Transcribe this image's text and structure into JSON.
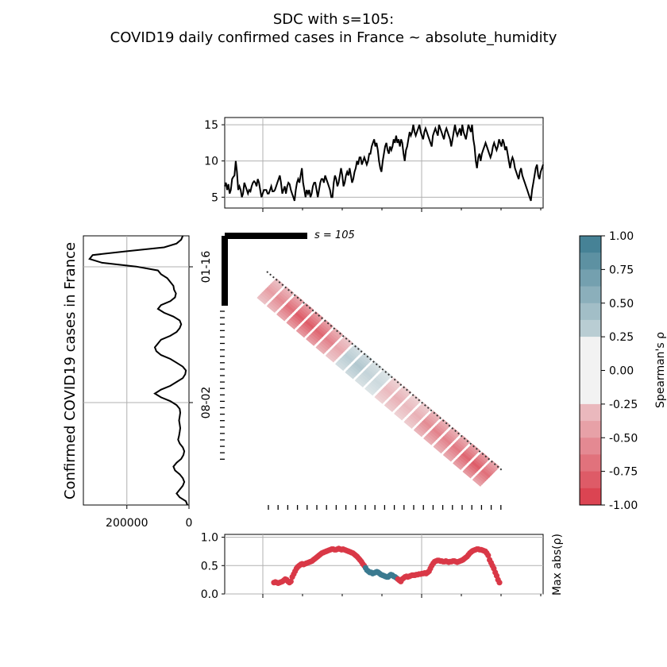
{
  "title_line1": "SDC with s=105:",
  "title_line2": "COVID19 daily confirmed cases in France ~ absolute_humidity",
  "s_label": "s = 105",
  "colors": {
    "positive": "#3b7a90",
    "negative": "#d93847",
    "line": "#000000",
    "grid": "#b0b0b0"
  },
  "chart_data": [
    {
      "type": "line",
      "panel": "top",
      "series": [
        {
          "values": [
            6.5,
            7,
            6,
            6.8,
            5.5,
            6,
            7.5,
            7.8,
            8,
            10,
            8.5,
            6,
            6.5,
            6,
            5,
            5.5,
            7,
            6.5,
            6,
            5.5,
            6,
            5.8,
            6.5,
            7,
            7.2,
            7,
            6.5,
            7.5,
            7,
            6,
            5,
            5.5,
            6,
            6,
            6,
            5.5,
            5.5,
            6,
            6.5,
            5.8,
            5.8,
            6,
            6.5,
            7,
            7.5,
            8,
            7,
            5.5,
            6,
            6.5,
            5.5,
            6.5,
            7,
            6.8,
            6,
            5.5,
            5,
            4.5,
            6,
            7,
            7.5,
            7,
            8,
            9,
            7,
            6,
            5,
            6,
            5.5,
            6,
            5,
            5.5,
            6.5,
            7,
            7,
            6,
            5,
            6,
            7,
            7.5,
            7.5,
            7,
            8,
            7.5,
            7,
            6.5,
            6,
            5,
            5,
            7,
            8,
            7.5,
            6.5,
            7,
            8,
            9,
            8,
            6.5,
            7,
            8,
            8.5,
            8,
            9,
            8,
            7,
            7.5,
            8.5,
            9,
            10,
            9.5,
            10.5,
            10.5,
            9.5,
            10,
            10.5,
            10,
            9.5,
            10,
            11,
            11,
            12,
            12.5,
            13,
            12,
            12.5,
            11.5,
            10,
            9,
            8.5,
            10,
            11,
            12,
            12.5,
            11.5,
            11,
            12,
            11.5,
            12,
            13,
            12.5,
            13.5,
            12.5,
            13,
            12,
            13,
            12.5,
            11,
            10,
            11.5,
            12,
            13,
            14,
            13.5,
            14,
            15,
            14,
            13.5,
            14,
            14.5,
            15,
            14,
            13.5,
            13,
            14,
            14.5,
            14,
            13.5,
            13,
            12.5,
            12,
            13.5,
            14,
            14.5,
            14,
            13.5,
            15,
            14.5,
            14,
            13.5,
            13,
            14,
            14.5,
            14,
            13.5,
            13,
            12,
            13,
            14,
            15,
            14,
            13.5,
            14,
            14.5,
            13.5,
            15,
            14,
            13.5,
            13,
            14,
            15,
            14.5,
            14,
            15,
            13,
            12,
            10,
            9,
            10.5,
            11,
            10,
            11,
            11.5,
            12,
            12.5,
            12,
            11.5,
            11,
            10.5,
            11,
            12,
            12.5,
            12,
            11.5,
            12,
            13,
            12.5,
            12,
            13,
            12.5,
            11.5,
            12,
            11,
            10,
            9,
            10,
            10.5,
            10,
            9,
            8.5,
            8,
            7.5,
            8.5,
            9,
            8,
            7.5,
            7,
            6.5,
            6,
            5.5,
            5,
            4.5,
            6,
            7,
            8,
            9,
            9.5,
            8,
            7.5,
            8.5,
            9,
            9.5
          ]
        }
      ],
      "ylim": [
        3.5,
        16
      ],
      "yticks": [
        "5",
        "10",
        "15"
      ]
    },
    {
      "type": "line",
      "panel": "left",
      "xlim_reversed": [
        0,
        340000
      ],
      "xticks": [
        "200000",
        "0"
      ],
      "ylabel": "Confirmed COVID19 cases in France",
      "yticks": [
        "01-16",
        "08-02"
      ],
      "series": [
        {
          "values": [
            20000,
            25000,
            40000,
            80000,
            200000,
            310000,
            320000,
            280000,
            170000,
            100000,
            90000,
            70000,
            60000,
            50000,
            48000,
            42000,
            45000,
            60000,
            90000,
            100000,
            80000,
            50000,
            30000,
            25000,
            30000,
            40000,
            60000,
            90000,
            100000,
            110000,
            105000,
            90000,
            60000,
            40000,
            20000,
            10000,
            12000,
            20000,
            40000,
            60000,
            90000,
            110000,
            90000,
            60000,
            40000,
            30000,
            28000,
            30000,
            32000,
            30000,
            28000,
            30000,
            32000,
            35000,
            30000,
            20000,
            15000,
            18000,
            25000,
            40000,
            50000,
            45000,
            30000,
            20000,
            15000,
            20000,
            30000,
            40000,
            30000,
            10000,
            5000
          ]
        }
      ]
    },
    {
      "type": "heatmap",
      "panel": "center",
      "value_name": "Spearman's ρ",
      "colorbar_ticks": [
        "1.00",
        "0.75",
        "0.50",
        "0.25",
        "0.00",
        "-0.25",
        "-0.50",
        "-0.75",
        "-1.00"
      ],
      "colorbar_label": "Spearman's ρ",
      "window_size": 105,
      "lags": [
        -8,
        -7,
        -6,
        -5,
        -4,
        -3,
        -2,
        -1,
        0,
        1,
        2
      ],
      "diagonal_rho": [
        -0.3,
        -0.45,
        -0.55,
        -0.7,
        -0.8,
        -0.8,
        -0.75,
        -0.6,
        -0.4,
        0.3,
        0.35,
        0.25,
        0.2,
        -0.3,
        -0.35,
        -0.3,
        -0.35,
        -0.55,
        -0.6,
        -0.6,
        -0.65,
        -0.75,
        -0.8,
        -0.7
      ]
    },
    {
      "type": "scatter",
      "panel": "bottom",
      "ylabel": "Max abs(ρ)",
      "yticks": [
        "0.0",
        "0.5",
        "1.0"
      ],
      "ylim": [
        0,
        1.05
      ],
      "values": [
        0.2,
        0.21,
        0.2,
        0.19,
        0.2,
        0.21,
        0.22,
        0.24,
        0.26,
        0.25,
        0.22,
        0.2,
        0.22,
        0.3,
        0.35,
        0.4,
        0.45,
        0.48,
        0.5,
        0.52,
        0.53,
        0.52,
        0.53,
        0.54,
        0.55,
        0.56,
        0.57,
        0.58,
        0.6,
        0.62,
        0.64,
        0.66,
        0.68,
        0.7,
        0.72,
        0.73,
        0.74,
        0.75,
        0.76,
        0.77,
        0.78,
        0.79,
        0.79,
        0.78,
        0.78,
        0.79,
        0.8,
        0.79,
        0.78,
        0.79,
        0.78,
        0.77,
        0.76,
        0.75,
        0.74,
        0.73,
        0.72,
        0.7,
        0.68,
        0.66,
        0.63,
        0.6,
        0.57,
        0.53,
        0.5,
        0.46,
        0.42,
        0.4,
        0.38,
        0.38,
        0.36,
        0.37,
        0.38,
        0.39,
        0.38,
        0.36,
        0.34,
        0.33,
        0.32,
        0.31,
        0.3,
        0.3,
        0.32,
        0.34,
        0.33,
        0.31,
        0.3,
        0.28,
        0.26,
        0.24,
        0.22,
        0.26,
        0.28,
        0.3,
        0.31,
        0.3,
        0.31,
        0.32,
        0.33,
        0.33,
        0.33,
        0.34,
        0.34,
        0.35,
        0.35,
        0.36,
        0.36,
        0.37,
        0.36,
        0.38,
        0.4,
        0.45,
        0.5,
        0.54,
        0.57,
        0.58,
        0.59,
        0.59,
        0.58,
        0.58,
        0.57,
        0.57,
        0.58,
        0.57,
        0.56,
        0.57,
        0.57,
        0.58,
        0.58,
        0.57,
        0.56,
        0.57,
        0.58,
        0.59,
        0.6,
        0.62,
        0.64,
        0.66,
        0.69,
        0.72,
        0.74,
        0.76,
        0.77,
        0.78,
        0.79,
        0.79,
        0.78,
        0.78,
        0.77,
        0.76,
        0.75,
        0.72,
        0.68,
        0.6,
        0.55,
        0.5,
        0.45,
        0.38,
        0.32,
        0.25,
        0.2
      ],
      "sign": [
        -1,
        -1,
        -1,
        -1,
        -1,
        -1,
        -1,
        -1,
        -1,
        -1,
        -1,
        -1,
        -1,
        -1,
        -1,
        -1,
        -1,
        -1,
        -1,
        -1,
        -1,
        -1,
        -1,
        -1,
        -1,
        -1,
        -1,
        -1,
        -1,
        -1,
        -1,
        -1,
        -1,
        -1,
        -1,
        -1,
        -1,
        -1,
        -1,
        -1,
        -1,
        -1,
        -1,
        -1,
        -1,
        -1,
        -1,
        -1,
        -1,
        -1,
        -1,
        -1,
        -1,
        -1,
        -1,
        -1,
        -1,
        -1,
        -1,
        -1,
        -1,
        -1,
        -1,
        -1,
        -1,
        1,
        1,
        1,
        1,
        1,
        1,
        1,
        1,
        1,
        1,
        1,
        1,
        1,
        1,
        1,
        1,
        1,
        1,
        1,
        1,
        1,
        1,
        1,
        -1,
        -1,
        -1,
        -1,
        -1,
        -1,
        -1,
        -1,
        -1,
        -1,
        -1,
        -1,
        -1,
        -1,
        -1,
        -1,
        -1,
        -1,
        -1,
        -1,
        -1,
        -1,
        -1,
        -1,
        -1,
        -1,
        -1,
        -1,
        -1,
        -1,
        -1,
        -1,
        -1,
        -1,
        -1,
        -1,
        -1,
        -1,
        -1,
        -1,
        -1,
        -1,
        -1,
        -1,
        -1,
        -1,
        -1,
        -1,
        -1,
        -1,
        -1,
        -1,
        -1,
        -1,
        -1,
        -1,
        -1,
        -1,
        -1,
        -1,
        -1,
        -1,
        -1,
        -1,
        -1,
        -1,
        -1,
        -1,
        -1,
        -1,
        -1,
        -1,
        -1,
        -1,
        -1,
        -1,
        -1,
        -1
      ]
    }
  ]
}
